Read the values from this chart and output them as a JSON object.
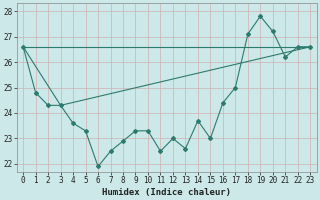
{
  "title": "",
  "xlabel": "Humidex (Indice chaleur)",
  "xlim": [
    -0.5,
    23.5
  ],
  "ylim": [
    21.7,
    28.3
  ],
  "yticks": [
    22,
    23,
    24,
    25,
    26,
    27,
    28
  ],
  "xticks": [
    0,
    1,
    2,
    3,
    4,
    5,
    6,
    7,
    8,
    9,
    10,
    11,
    12,
    13,
    14,
    15,
    16,
    17,
    18,
    19,
    20,
    21,
    22,
    23
  ],
  "bg_color": "#cce8e8",
  "grid_color": "#aacccc",
  "line_color": "#2d7a6e",
  "line1": [
    26.6,
    24.8,
    24.3,
    24.3,
    23.6,
    23.3,
    21.9,
    22.5,
    22.9,
    23.3,
    23.3,
    22.5,
    23.0,
    22.6,
    23.7,
    23.0,
    24.4,
    25.0,
    27.1,
    27.8,
    27.2,
    26.2,
    26.6,
    26.6
  ],
  "line2_x": [
    0,
    23
  ],
  "line2_y": [
    26.6,
    26.6
  ],
  "line3_x": [
    0,
    3,
    23
  ],
  "line3_y": [
    26.6,
    24.3,
    26.6
  ]
}
